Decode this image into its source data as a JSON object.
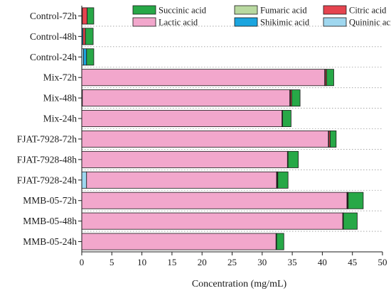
{
  "chart_data": {
    "type": "bar",
    "orientation": "horizontal",
    "stacked": true,
    "xlabel": "Concentration (mg/mL)",
    "ylabel": "",
    "xlim": [
      0,
      50
    ],
    "xticks": [
      0,
      5,
      10,
      15,
      20,
      25,
      30,
      35,
      40,
      45,
      50
    ],
    "categories": [
      "Control-72h",
      "Control-48h",
      "Control-24h",
      "Mix-72h",
      "Mix-48h",
      "Mix-24h",
      "FJAT-7928-72h",
      "FJAT-7928-48h",
      "FJAT-7928-24h",
      "MMB-05-72h",
      "MMB-05-48h",
      "MMB-05-24h"
    ],
    "series": [
      {
        "name": "Quininic acid",
        "color": "#9fd7ef",
        "values": [
          0,
          0,
          0.3,
          0,
          0,
          0,
          0,
          0,
          0.8,
          0,
          0,
          0
        ]
      },
      {
        "name": "Shikimic acid",
        "color": "#1ba5df",
        "values": [
          0.1,
          0.2,
          0.5,
          0,
          0.1,
          0,
          0,
          0,
          0,
          0,
          0,
          0
        ]
      },
      {
        "name": "Lactic acid",
        "color": "#f2a7cc",
        "values": [
          0,
          0,
          0,
          40.4,
          34.5,
          33.3,
          41.0,
          34.2,
          31.6,
          44.1,
          43.4,
          32.3
        ]
      },
      {
        "name": "Fumaric acid",
        "color": "#b9d9a0",
        "values": [
          0,
          0,
          0,
          0.1,
          0.1,
          0.1,
          0.1,
          0.1,
          0.1,
          0.1,
          0.1,
          0.1
        ]
      },
      {
        "name": "Citric acid",
        "color": "#e5444f",
        "values": [
          0.8,
          0.4,
          0,
          0.2,
          0.2,
          0,
          0.2,
          0,
          0.1,
          0.1,
          0,
          0
        ]
      },
      {
        "name": "Succinic acid",
        "color": "#27a847",
        "values": [
          1.1,
          1.3,
          1.2,
          1.2,
          1.4,
          1.4,
          1.0,
          1.7,
          1.7,
          2.5,
          2.3,
          1.2
        ]
      }
    ],
    "legend": {
      "placement": "top-right",
      "order": [
        "Succinic acid",
        "Fumaric acid",
        "Citric acid",
        "Lactic acid",
        "Shikimic acid",
        "Quininic acid"
      ]
    },
    "grid": false,
    "row_separators": "dotted"
  }
}
